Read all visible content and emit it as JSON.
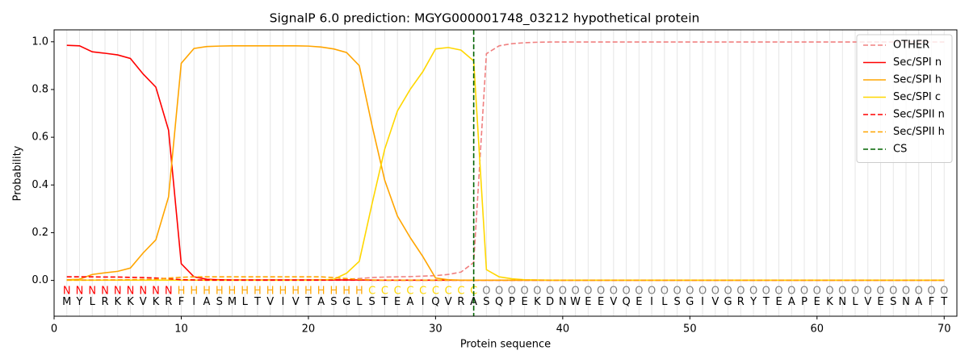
{
  "chart_data": {
    "type": "line",
    "title": "SignalP 6.0 prediction: MGYG000001748_03212 hypothetical protein",
    "x_label": "Protein sequence",
    "y_label": "Probability",
    "xlim": [
      0,
      71
    ],
    "ylim": [
      -0.15,
      1.05
    ],
    "xticks": [
      0,
      10,
      20,
      30,
      40,
      50,
      60,
      70
    ],
    "yticks": [
      {
        "value": 0,
        "label": "0.0"
      },
      0.2,
      0.4,
      0.6,
      0.8,
      {
        "value": 1,
        "label": "1.0"
      }
    ],
    "grid": true,
    "legend": "upper right",
    "x": [
      1,
      2,
      3,
      4,
      5,
      6,
      7,
      8,
      9,
      10,
      11,
      12,
      13,
      14,
      15,
      16,
      17,
      18,
      19,
      20,
      21,
      22,
      23,
      24,
      25,
      26,
      27,
      28,
      29,
      30,
      31,
      32,
      33,
      34,
      35,
      36,
      37,
      38,
      39,
      40,
      41,
      42,
      43,
      44,
      45,
      46,
      47,
      48,
      49,
      50,
      51,
      52,
      53,
      54,
      55,
      56,
      57,
      58,
      59,
      60,
      61,
      62,
      63,
      64,
      65,
      66,
      67,
      68,
      69,
      70
    ],
    "sequence": [
      "M",
      "Y",
      "L",
      "R",
      "K",
      "K",
      "V",
      "K",
      "R",
      "F",
      "I",
      "A",
      "S",
      "M",
      "L",
      "T",
      "V",
      "I",
      "V",
      "T",
      "A",
      "S",
      "G",
      "L",
      "S",
      "T",
      "E",
      "A",
      "I",
      "Q",
      "V",
      "R",
      "A",
      "S",
      "Q",
      "P",
      "E",
      "K",
      "D",
      "N",
      "W",
      "E",
      "E",
      "V",
      "Q",
      "E",
      "I",
      "L",
      "S",
      "G",
      "I",
      "V",
      "G",
      "R",
      "Y",
      "T",
      "E",
      "A",
      "P",
      "E",
      "K",
      "N",
      "L",
      "V",
      "E",
      "S",
      "N",
      "A",
      "F",
      "T"
    ],
    "annotations": [
      "N",
      "N",
      "N",
      "N",
      "N",
      "N",
      "N",
      "N",
      "N",
      "H",
      "H",
      "H",
      "H",
      "H",
      "H",
      "H",
      "H",
      "H",
      "H",
      "H",
      "H",
      "H",
      "H",
      "H",
      "C",
      "C",
      "C",
      "C",
      "C",
      "C",
      "C",
      "C",
      "C",
      "O",
      "O",
      "O",
      "O",
      "O",
      "O",
      "O",
      "O",
      "O",
      "O",
      "O",
      "O",
      "O",
      "O",
      "O",
      "O",
      "O",
      "O",
      "O",
      "O",
      "O",
      "O",
      "O",
      "O",
      "O",
      "O",
      "O",
      "O",
      "O",
      "O",
      "O",
      "O",
      "O",
      "O",
      "O",
      "O",
      "O"
    ],
    "annotation_colors": {
      "N": "#ff0000",
      "H": "#ffa500",
      "C": "#ffd700",
      "O": "#808080"
    },
    "series": [
      {
        "name": "OTHER",
        "color": "#f08080",
        "dashed": true,
        "values": [
          0.002,
          0.002,
          0.002,
          0.002,
          0.002,
          0.002,
          0.002,
          0.002,
          0.002,
          0.002,
          0.002,
          0.002,
          0.002,
          0.002,
          0.002,
          0.002,
          0.002,
          0.002,
          0.002,
          0.002,
          0.002,
          0.003,
          0.005,
          0.008,
          0.012,
          0.014,
          0.015,
          0.016,
          0.018,
          0.02,
          0.025,
          0.035,
          0.075,
          0.95,
          0.983,
          0.992,
          0.996,
          0.998,
          0.999,
          0.999,
          0.999,
          0.999,
          0.999,
          0.999,
          0.999,
          0.999,
          0.999,
          0.999,
          0.999,
          0.999,
          0.999,
          0.999,
          0.999,
          0.999,
          0.999,
          0.999,
          0.999,
          0.999,
          0.999,
          0.999,
          0.999,
          0.999,
          0.999,
          0.999,
          0.999,
          0.999,
          0.999,
          0.999,
          0.999,
          0.999
        ]
      },
      {
        "name": "Sec/SPI n",
        "color": "#ff0000",
        "dashed": false,
        "values": [
          0.985,
          0.983,
          0.958,
          0.952,
          0.945,
          0.93,
          0.865,
          0.81,
          0.63,
          0.07,
          0.015,
          0.005,
          0.003,
          0.002,
          0.002,
          0.002,
          0.002,
          0.002,
          0.002,
          0.002,
          0.002,
          0.002,
          0.002,
          0.002,
          0.001,
          0.001,
          0.001,
          0.001,
          0.001,
          0.001,
          0.001,
          0.001,
          0.001,
          0.001,
          0.001,
          0.001,
          0.001,
          0.001,
          0.001,
          0.001,
          0.001,
          0.001,
          0.001,
          0.001,
          0.001,
          0.001,
          0.001,
          0.001,
          0.001,
          0.001,
          0.001,
          0.001,
          0.001,
          0.001,
          0.001,
          0.001,
          0.001,
          0.001,
          0.001,
          0.001,
          0.001,
          0.001,
          0.001,
          0.001,
          0.001,
          0.001,
          0.001,
          0.001,
          0.001,
          0.001
        ]
      },
      {
        "name": "Sec/SPI h",
        "color": "#ffa500",
        "dashed": false,
        "values": [
          0.003,
          0.005,
          0.025,
          0.032,
          0.038,
          0.052,
          0.115,
          0.17,
          0.35,
          0.91,
          0.972,
          0.98,
          0.982,
          0.983,
          0.983,
          0.983,
          0.983,
          0.983,
          0.983,
          0.982,
          0.978,
          0.97,
          0.955,
          0.9,
          0.65,
          0.42,
          0.27,
          0.18,
          0.1,
          0.01,
          0.003,
          0.001,
          0.001,
          0.001,
          0.001,
          0.001,
          0.001,
          0.001,
          0.001,
          0.001,
          0.001,
          0.001,
          0.001,
          0.001,
          0.001,
          0.001,
          0.001,
          0.001,
          0.001,
          0.001,
          0.001,
          0.001,
          0.001,
          0.001,
          0.001,
          0.001,
          0.001,
          0.001,
          0.001,
          0.001,
          0.001,
          0.001,
          0.001,
          0.001,
          0.001,
          0.001,
          0.001,
          0.001,
          0.001,
          0.001
        ]
      },
      {
        "name": "Sec/SPI c",
        "color": "#ffd700",
        "dashed": false,
        "values": [
          0.001,
          0.001,
          0.001,
          0.001,
          0.001,
          0.001,
          0.001,
          0.001,
          0.001,
          0.001,
          0.001,
          0.001,
          0.001,
          0.001,
          0.001,
          0.001,
          0.001,
          0.001,
          0.001,
          0.001,
          0.002,
          0.005,
          0.03,
          0.08,
          0.32,
          0.55,
          0.71,
          0.8,
          0.875,
          0.97,
          0.976,
          0.965,
          0.92,
          0.045,
          0.015,
          0.007,
          0.003,
          0.002,
          0.001,
          0.001,
          0.001,
          0.001,
          0.001,
          0.001,
          0.001,
          0.001,
          0.001,
          0.001,
          0.001,
          0.001,
          0.001,
          0.001,
          0.001,
          0.001,
          0.001,
          0.001,
          0.001,
          0.001,
          0.001,
          0.001,
          0.001,
          0.001,
          0.001,
          0.001,
          0.001,
          0.001,
          0.001,
          0.001,
          0.001,
          0.001
        ]
      },
      {
        "name": "Sec/SPII n",
        "color": "#ff0000",
        "dashed": true,
        "values": [
          0.015,
          0.015,
          0.015,
          0.014,
          0.014,
          0.013,
          0.012,
          0.01,
          0.007,
          0.003,
          0.002,
          0.001,
          0.001,
          0.001,
          0.001,
          0.001,
          0.001,
          0.001,
          0.001,
          0.001,
          0.001,
          0.001,
          0.001,
          0.001,
          0.001,
          0.001,
          0.001,
          0.001,
          0.001,
          0.001,
          0.001,
          0.001,
          0.001,
          0.001,
          0.001,
          0.001,
          0.001,
          0.001,
          0.001,
          0.001,
          0.001,
          0.001,
          0.001,
          0.001,
          0.001,
          0.001,
          0.001,
          0.001,
          0.001,
          0.001,
          0.001,
          0.001,
          0.001,
          0.001,
          0.001,
          0.001,
          0.001,
          0.001,
          0.001,
          0.001,
          0.001,
          0.001,
          0.001,
          0.001,
          0.001,
          0.001,
          0.001,
          0.001,
          0.001,
          0.001
        ]
      },
      {
        "name": "Sec/SPII h",
        "color": "#ffa500",
        "dashed": true,
        "values": [
          0.001,
          0.001,
          0.001,
          0.002,
          0.002,
          0.003,
          0.004,
          0.005,
          0.01,
          0.013,
          0.015,
          0.015,
          0.015,
          0.015,
          0.015,
          0.015,
          0.015,
          0.015,
          0.015,
          0.015,
          0.015,
          0.012,
          0.008,
          0.004,
          0.002,
          0.001,
          0.001,
          0.001,
          0.001,
          0.001,
          0.001,
          0.001,
          0.001,
          0.001,
          0.001,
          0.001,
          0.001,
          0.001,
          0.001,
          0.001,
          0.001,
          0.001,
          0.001,
          0.001,
          0.001,
          0.001,
          0.001,
          0.001,
          0.001,
          0.001,
          0.001,
          0.001,
          0.001,
          0.001,
          0.001,
          0.001,
          0.001,
          0.001,
          0.001,
          0.001,
          0.001,
          0.001,
          0.001,
          0.001,
          0.001,
          0.001,
          0.001,
          0.001,
          0.001,
          0.001
        ]
      }
    ],
    "cs": {
      "name": "CS",
      "color": "#006400",
      "x": 33
    }
  }
}
